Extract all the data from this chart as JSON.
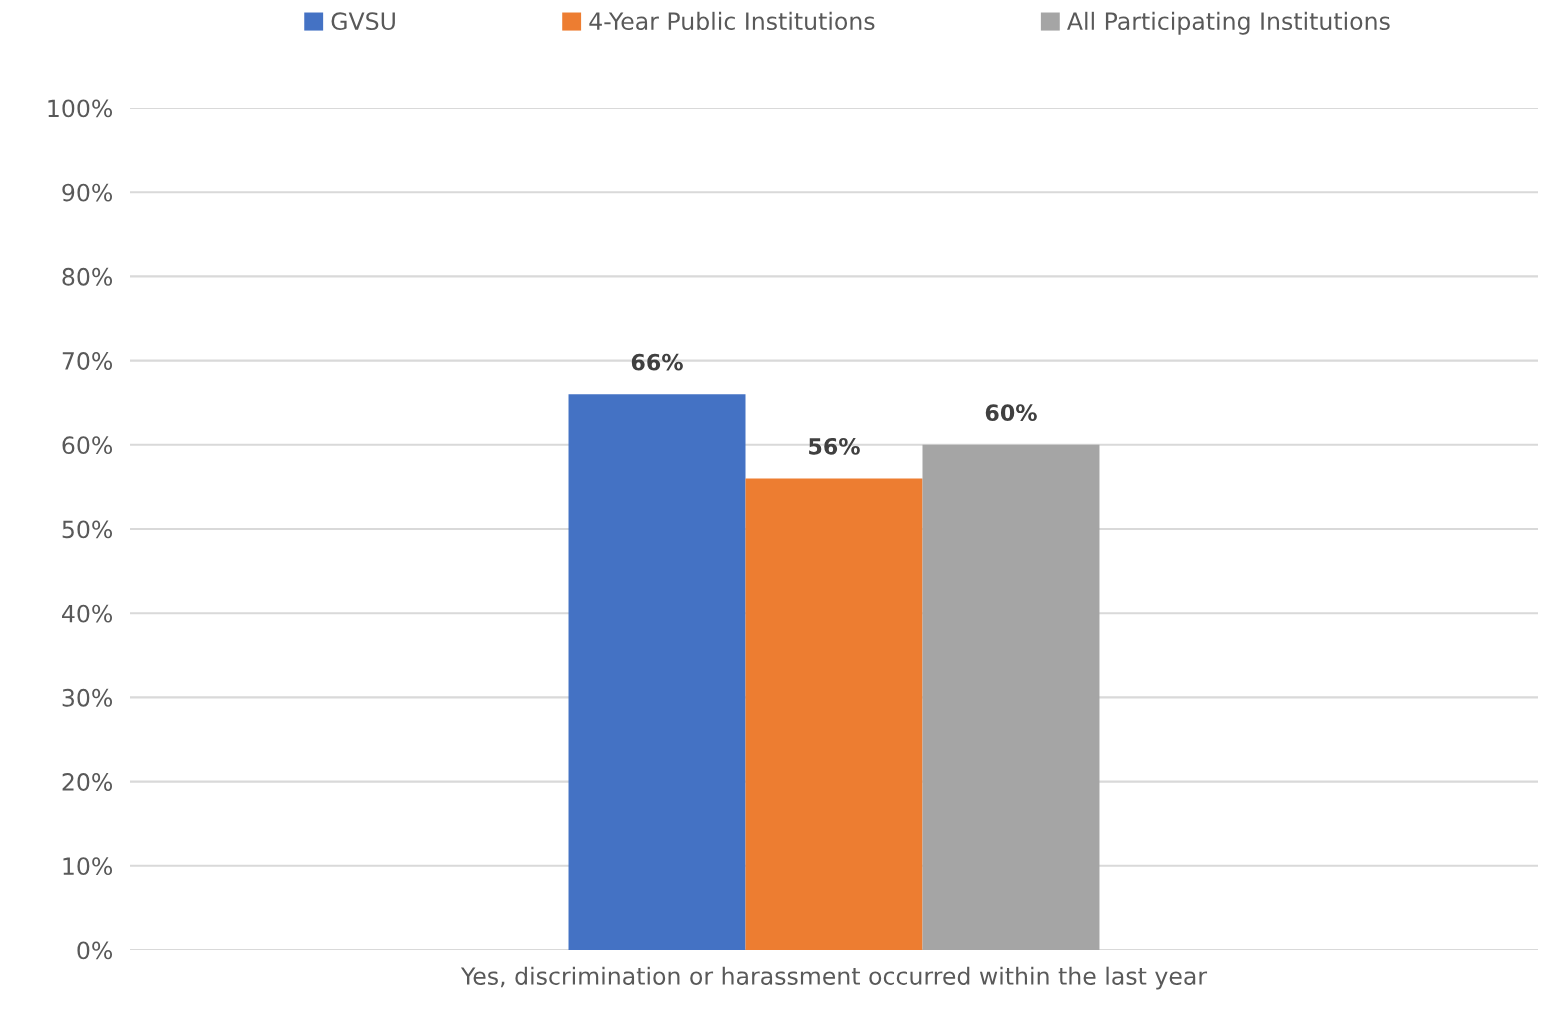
{
  "chart_data": {
    "type": "bar",
    "categories": [
      "Yes, discrimination or harassment occurred within the last year"
    ],
    "series": [
      {
        "name": "GVSU",
        "color": "#4472c4",
        "values": [
          66
        ],
        "value_labels": [
          "66%"
        ]
      },
      {
        "name": "4-Year Public Institutions",
        "color": "#ed7d31",
        "values": [
          56
        ],
        "value_labels": [
          "56%"
        ]
      },
      {
        "name": "All Participating Institutions",
        "color": "#a5a5a5",
        "values": [
          60
        ],
        "value_labels": [
          "60%"
        ]
      }
    ],
    "ylim": [
      0,
      100
    ],
    "yticks": [
      {
        "value": 0,
        "label": "0%"
      },
      {
        "value": 10,
        "label": "10%"
      },
      {
        "value": 20,
        "label": "20%"
      },
      {
        "value": 30,
        "label": "30%"
      },
      {
        "value": 40,
        "label": "40%"
      },
      {
        "value": 50,
        "label": "50%"
      },
      {
        "value": 60,
        "label": "60%"
      },
      {
        "value": 70,
        "label": "70%"
      },
      {
        "value": 80,
        "label": "80%"
      },
      {
        "value": 90,
        "label": "90%"
      },
      {
        "value": 100,
        "label": "100%"
      }
    ],
    "grid": "y",
    "legend": "top"
  }
}
